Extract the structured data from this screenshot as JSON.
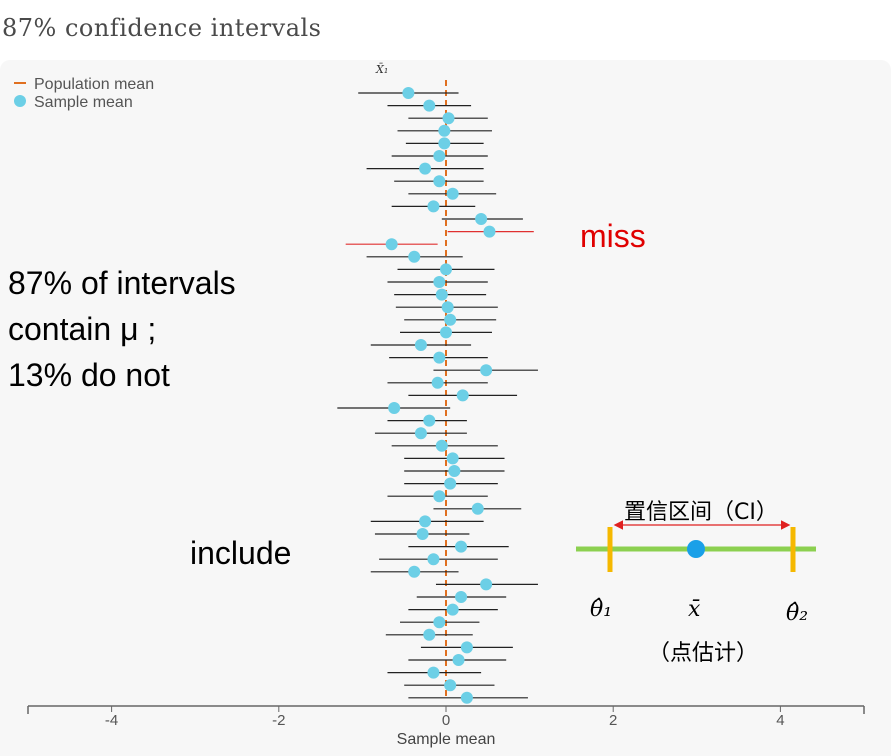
{
  "title": "87% confidence intervals",
  "legend": {
    "population_mean": "Population mean",
    "sample_mean": "Sample mean"
  },
  "first_interval_label": "X̄₁",
  "annotations": {
    "line1": "87% of intervals",
    "line2": "contain μ ;",
    "line3": "13% do not",
    "miss": "miss",
    "include": "include",
    "ci": "置信区间（CI）",
    "point_estimate": "（点估计）",
    "theta1": "θ̂₁",
    "xbar": "x̄",
    "theta2": "θ̂₂"
  },
  "colors": {
    "population_mean": "#e07020",
    "sample_mean": "#6ccfe6",
    "interval": "#222222",
    "miss_interval": "#e03030",
    "miss_text": "#e00000",
    "diagram_bar": "#8cd050",
    "diagram_bound": "#f5b800",
    "diagram_point": "#1aa0e8",
    "diagram_arrow": "#e02020"
  },
  "chart_data": {
    "type": "interval",
    "xlabel": "Sample mean",
    "xlim": [
      -5,
      5
    ],
    "xticks": [
      -4,
      -2,
      0,
      2,
      4
    ],
    "population_mean": 0,
    "intervals": [
      {
        "mean": -0.45,
        "low": -1.05,
        "high": 0.15
      },
      {
        "mean": -0.2,
        "low": -0.7,
        "high": 0.3
      },
      {
        "mean": 0.03,
        "low": -0.45,
        "high": 0.5
      },
      {
        "mean": -0.02,
        "low": -0.58,
        "high": 0.55
      },
      {
        "mean": -0.02,
        "low": -0.48,
        "high": 0.45
      },
      {
        "mean": -0.08,
        "low": -0.65,
        "high": 0.5
      },
      {
        "mean": -0.25,
        "low": -0.95,
        "high": 0.45
      },
      {
        "mean": -0.08,
        "low": -0.62,
        "high": 0.45
      },
      {
        "mean": 0.08,
        "low": -0.45,
        "high": 0.6
      },
      {
        "mean": -0.15,
        "low": -0.65,
        "high": 0.35
      },
      {
        "mean": 0.42,
        "low": -0.05,
        "high": 0.92
      },
      {
        "mean": 0.52,
        "low": 0.02,
        "high": 1.05,
        "miss": true
      },
      {
        "mean": -0.65,
        "low": -1.2,
        "high": -0.1,
        "miss": true
      },
      {
        "mean": -0.38,
        "low": -0.95,
        "high": 0.2
      },
      {
        "mean": 0.0,
        "low": -0.58,
        "high": 0.58
      },
      {
        "mean": -0.08,
        "low": -0.7,
        "high": 0.5
      },
      {
        "mean": -0.05,
        "low": -0.62,
        "high": 0.48
      },
      {
        "mean": 0.02,
        "low": -0.6,
        "high": 0.62
      },
      {
        "mean": 0.05,
        "low": -0.5,
        "high": 0.6
      },
      {
        "mean": 0.0,
        "low": -0.55,
        "high": 0.55
      },
      {
        "mean": -0.3,
        "low": -0.9,
        "high": 0.3
      },
      {
        "mean": -0.08,
        "low": -0.68,
        "high": 0.5
      },
      {
        "mean": 0.48,
        "low": -0.15,
        "high": 1.1
      },
      {
        "mean": -0.1,
        "low": -0.7,
        "high": 0.5
      },
      {
        "mean": 0.2,
        "low": -0.45,
        "high": 0.85
      },
      {
        "mean": -0.62,
        "low": -1.3,
        "high": 0.05
      },
      {
        "mean": -0.2,
        "low": -0.7,
        "high": 0.25
      },
      {
        "mean": -0.3,
        "low": -0.85,
        "high": 0.25
      },
      {
        "mean": -0.05,
        "low": -0.65,
        "high": 0.62
      },
      {
        "mean": 0.08,
        "low": -0.5,
        "high": 0.7
      },
      {
        "mean": 0.1,
        "low": -0.5,
        "high": 0.7
      },
      {
        "mean": 0.05,
        "low": -0.5,
        "high": 0.62
      },
      {
        "mean": -0.08,
        "low": -0.7,
        "high": 0.5
      },
      {
        "mean": 0.38,
        "low": -0.15,
        "high": 0.9
      },
      {
        "mean": -0.25,
        "low": -0.9,
        "high": 0.45
      },
      {
        "mean": -0.28,
        "low": -0.85,
        "high": 0.28
      },
      {
        "mean": 0.18,
        "low": -0.45,
        "high": 0.75
      },
      {
        "mean": -0.15,
        "low": -0.8,
        "high": 0.62
      },
      {
        "mean": -0.38,
        "low": -0.9,
        "high": 0.15
      },
      {
        "mean": 0.48,
        "low": -0.12,
        "high": 1.1
      },
      {
        "mean": 0.18,
        "low": -0.35,
        "high": 0.72
      },
      {
        "mean": 0.08,
        "low": -0.45,
        "high": 0.62
      },
      {
        "mean": -0.08,
        "low": -0.55,
        "high": 0.4
      },
      {
        "mean": -0.2,
        "low": -0.72,
        "high": 0.32
      },
      {
        "mean": 0.25,
        "low": -0.3,
        "high": 0.8
      },
      {
        "mean": 0.15,
        "low": -0.45,
        "high": 0.72
      },
      {
        "mean": -0.15,
        "low": -0.7,
        "high": 0.42
      },
      {
        "mean": 0.05,
        "low": -0.5,
        "high": 0.58
      },
      {
        "mean": 0.25,
        "low": -0.45,
        "high": 0.98
      }
    ]
  }
}
